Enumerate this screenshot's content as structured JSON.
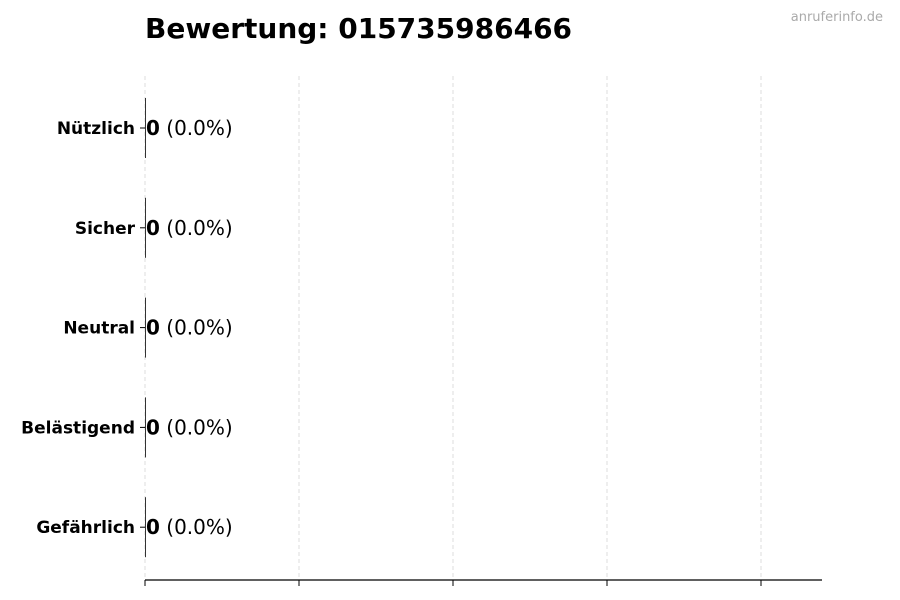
{
  "title": "Bewertung: 015735986466",
  "watermark": "anruferinfo.de",
  "chart_data": {
    "type": "bar",
    "orientation": "horizontal",
    "title": "Bewertung: 015735986466",
    "categories": [
      "Nützlich",
      "Sicher",
      "Neutral",
      "Belästigend",
      "Gefährlich"
    ],
    "values": [
      0,
      0,
      0,
      0,
      0
    ],
    "data_labels": [
      {
        "count": "0",
        "percent": "(0.0%)"
      },
      {
        "count": "0",
        "percent": "(0.0%)"
      },
      {
        "count": "0",
        "percent": "(0.0%)"
      },
      {
        "count": "0",
        "percent": "(0.0%)"
      },
      {
        "count": "0",
        "percent": "(0.0%)"
      }
    ],
    "xlabel": "",
    "ylabel": "",
    "x_tick_count": 5,
    "grid": "vertical dashed",
    "bar_color": "#333333"
  }
}
